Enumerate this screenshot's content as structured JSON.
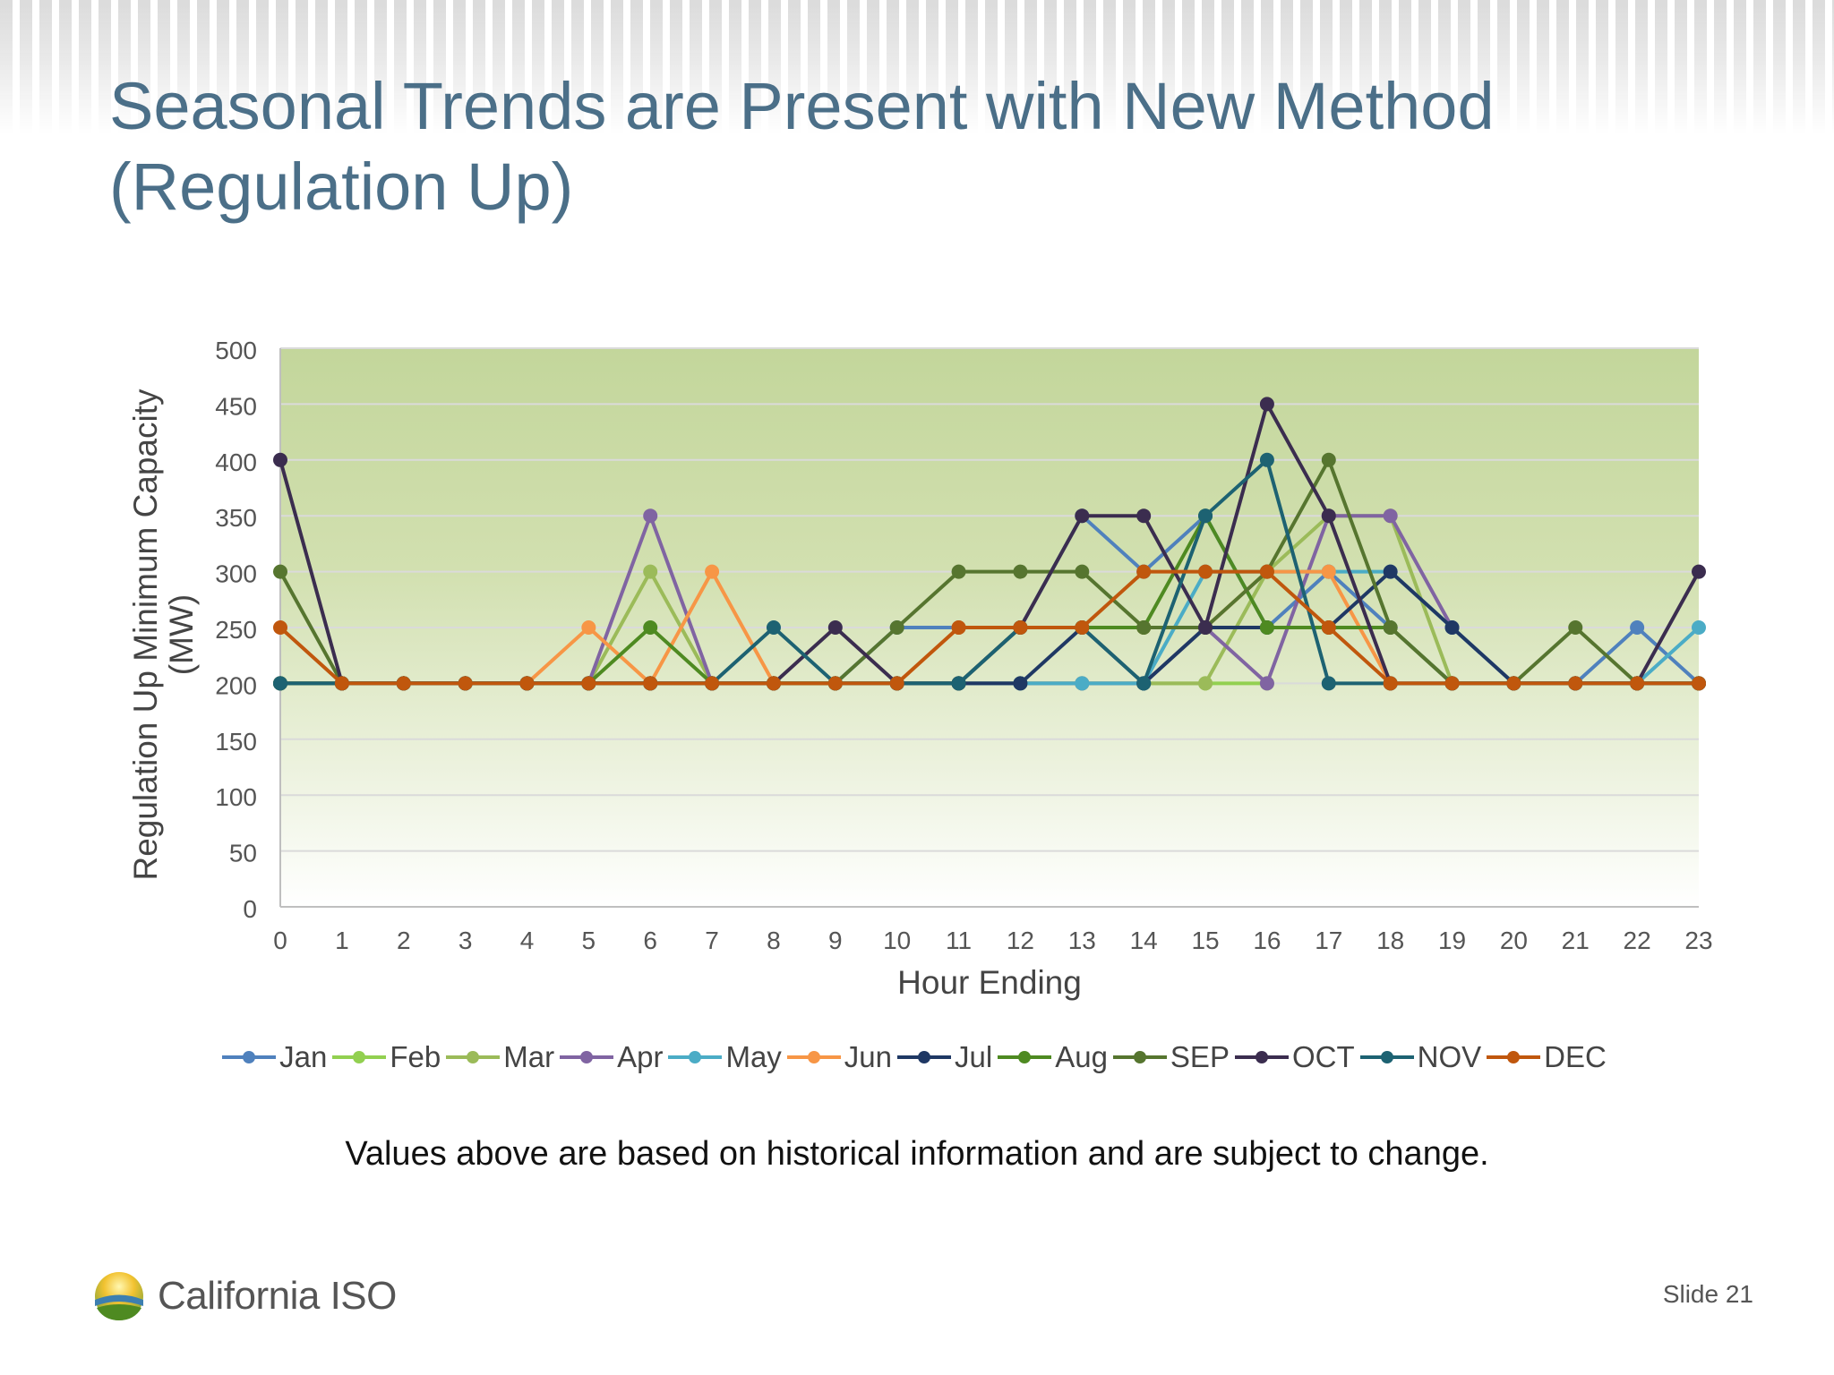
{
  "slide": {
    "title_line1": "Seasonal Trends are Present with New Method",
    "title_line2": "(Regulation Up)",
    "footnote": "Values above are based on historical information and are subject to change.",
    "logo_text": "California ISO",
    "slide_number": "Slide 21"
  },
  "chart_data": {
    "type": "line",
    "title": "",
    "xlabel": "Hour Ending",
    "ylabel_line1": "Regulation Up Minimum Capacity",
    "ylabel_line2": "(MW)",
    "x": [
      0,
      1,
      2,
      3,
      4,
      5,
      6,
      7,
      8,
      9,
      10,
      11,
      12,
      13,
      14,
      15,
      16,
      17,
      18,
      19,
      20,
      21,
      22,
      23
    ],
    "ylim": [
      0,
      500
    ],
    "yticks": [
      0,
      50,
      100,
      150,
      200,
      250,
      300,
      350,
      400,
      450,
      500
    ],
    "legend_position": "bottom",
    "series": [
      {
        "name": "Jan",
        "color": "#4f81bd",
        "values": [
          200,
          200,
          200,
          200,
          200,
          200,
          200,
          200,
          200,
          200,
          250,
          250,
          250,
          350,
          300,
          350,
          250,
          300,
          250,
          200,
          200,
          200,
          250,
          200
        ]
      },
      {
        "name": "Feb",
        "color": "#92d050",
        "values": [
          200,
          200,
          200,
          200,
          200,
          200,
          200,
          200,
          200,
          200,
          200,
          200,
          200,
          200,
          200,
          200,
          200,
          null,
          null,
          null,
          null,
          null,
          null,
          null
        ]
      },
      {
        "name": "Mar",
        "color": "#9bbb59",
        "values": [
          200,
          200,
          200,
          200,
          200,
          200,
          300,
          200,
          200,
          200,
          200,
          200,
          200,
          200,
          200,
          200,
          300,
          350,
          350,
          200,
          200,
          200,
          200,
          200
        ]
      },
      {
        "name": "Apr",
        "color": "#8064a2",
        "values": [
          200,
          200,
          200,
          200,
          200,
          200,
          350,
          200,
          200,
          200,
          200,
          200,
          200,
          200,
          200,
          250,
          200,
          350,
          350,
          250,
          200,
          200,
          200,
          200
        ]
      },
      {
        "name": "May",
        "color": "#4bacc6",
        "values": [
          200,
          200,
          200,
          200,
          200,
          200,
          200,
          200,
          200,
          200,
          200,
          200,
          200,
          200,
          200,
          300,
          300,
          300,
          300,
          250,
          200,
          200,
          200,
          250
        ]
      },
      {
        "name": "Jun",
        "color": "#f79646",
        "values": [
          200,
          200,
          200,
          200,
          200,
          250,
          200,
          300,
          200,
          200,
          200,
          250,
          250,
          250,
          250,
          250,
          300,
          300,
          200,
          200,
          200,
          200,
          200,
          200
        ]
      },
      {
        "name": "Jul",
        "color": "#1f3864",
        "values": [
          200,
          200,
          200,
          200,
          200,
          200,
          200,
          200,
          200,
          200,
          200,
          200,
          200,
          250,
          200,
          250,
          250,
          250,
          300,
          250,
          200,
          200,
          200,
          200
        ]
      },
      {
        "name": "Aug",
        "color": "#4e8a21",
        "values": [
          200,
          200,
          200,
          200,
          200,
          200,
          250,
          200,
          200,
          200,
          200,
          200,
          250,
          250,
          250,
          350,
          250,
          250,
          250,
          200,
          200,
          200,
          200,
          200
        ]
      },
      {
        "name": "SEP",
        "color": "#56752f",
        "values": [
          300,
          200,
          200,
          200,
          200,
          200,
          200,
          200,
          200,
          200,
          250,
          300,
          300,
          300,
          250,
          250,
          300,
          400,
          250,
          200,
          200,
          250,
          200,
          200
        ]
      },
      {
        "name": "OCT",
        "color": "#3b2d4f",
        "values": [
          400,
          200,
          200,
          200,
          200,
          200,
          200,
          200,
          200,
          250,
          200,
          200,
          250,
          350,
          350,
          250,
          450,
          350,
          200,
          200,
          200,
          200,
          200,
          300
        ]
      },
      {
        "name": "NOV",
        "color": "#1d6272",
        "values": [
          200,
          200,
          200,
          200,
          200,
          200,
          200,
          200,
          250,
          200,
          200,
          200,
          250,
          250,
          200,
          350,
          400,
          200,
          200,
          200,
          200,
          200,
          200,
          200
        ]
      },
      {
        "name": "DEC",
        "color": "#c0570d",
        "values": [
          250,
          200,
          200,
          200,
          200,
          200,
          200,
          200,
          200,
          200,
          200,
          250,
          250,
          250,
          300,
          300,
          300,
          250,
          200,
          200,
          200,
          200,
          200,
          200
        ]
      }
    ]
  }
}
